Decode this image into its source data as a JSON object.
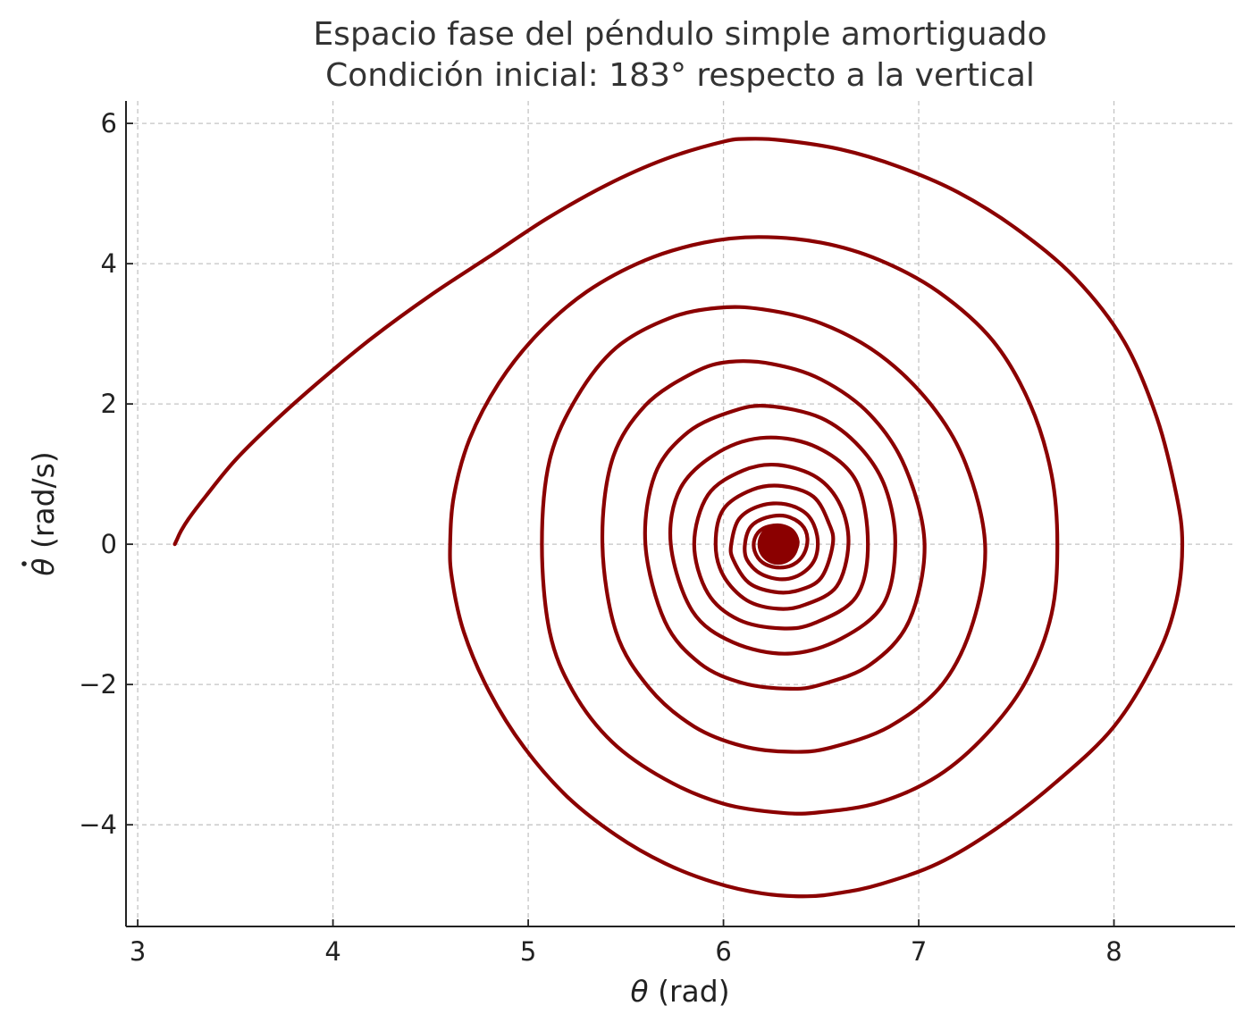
{
  "chart_data": {
    "type": "line",
    "title_lines": [
      "Espacio fase del péndulo simple amortiguado",
      "Condición inicial: 183° respecto a la vertical"
    ],
    "xlabel_symbol": "θ",
    "xlabel_unit": " (rad)",
    "ylabel_symbol": "θ",
    "ylabel_unit": " (rad/s)",
    "xlim": [
      2.94,
      8.62
    ],
    "ylim": [
      -5.45,
      6.32
    ],
    "xticks": [
      {
        "value": 3,
        "label": "3"
      },
      {
        "value": 4,
        "label": "4"
      },
      {
        "value": 5,
        "label": "5"
      },
      {
        "value": 6,
        "label": "6"
      },
      {
        "value": 7,
        "label": "7"
      },
      {
        "value": 8,
        "label": "8"
      }
    ],
    "yticks": [
      {
        "value": 6,
        "label": "6"
      },
      {
        "value": 4,
        "label": "4"
      },
      {
        "value": 2,
        "label": "2"
      },
      {
        "value": 0,
        "label": "0"
      },
      {
        "value": -2,
        "label": "−2"
      },
      {
        "value": -4,
        "label": "−4"
      }
    ],
    "grid": true,
    "line_color": "#8b0000",
    "series": [
      {
        "style": "phase-trajectory",
        "points": [
          [
            3.19,
            0.0
          ],
          [
            3.2,
            0.06
          ],
          [
            3.22,
            0.18
          ],
          [
            3.26,
            0.36
          ],
          [
            3.35,
            0.69
          ],
          [
            3.5,
            1.2
          ],
          [
            3.7,
            1.75
          ],
          [
            3.93,
            2.32
          ],
          [
            4.2,
            2.94
          ],
          [
            4.5,
            3.55
          ],
          [
            4.8,
            4.1
          ],
          [
            5.1,
            4.65
          ],
          [
            5.4,
            5.12
          ],
          [
            5.7,
            5.49
          ],
          [
            6.0,
            5.74
          ],
          [
            6.13,
            5.78
          ],
          [
            6.3,
            5.76
          ],
          [
            6.6,
            5.63
          ],
          [
            6.9,
            5.38
          ],
          [
            7.2,
            5.02
          ],
          [
            7.5,
            4.5
          ],
          [
            7.8,
            3.8
          ],
          [
            8.05,
            2.9
          ],
          [
            8.22,
            1.8
          ],
          [
            8.32,
            0.7
          ],
          [
            8.35,
            0.0
          ],
          [
            8.32,
            -0.8
          ],
          [
            8.22,
            -1.6
          ],
          [
            8.0,
            -2.6
          ],
          [
            7.7,
            -3.4
          ],
          [
            7.4,
            -4.05
          ],
          [
            7.1,
            -4.55
          ],
          [
            6.8,
            -4.85
          ],
          [
            6.6,
            -4.97
          ],
          [
            6.43,
            -5.02
          ],
          [
            6.2,
            -4.98
          ],
          [
            5.95,
            -4.82
          ],
          [
            5.7,
            -4.55
          ],
          [
            5.45,
            -4.15
          ],
          [
            5.2,
            -3.6
          ],
          [
            4.98,
            -2.9
          ],
          [
            4.8,
            -2.1
          ],
          [
            4.67,
            -1.25
          ],
          [
            4.61,
            -0.5
          ],
          [
            4.6,
            0.0
          ],
          [
            4.62,
            0.7
          ],
          [
            4.7,
            1.5
          ],
          [
            4.85,
            2.3
          ],
          [
            5.05,
            3.0
          ],
          [
            5.3,
            3.6
          ],
          [
            5.6,
            4.05
          ],
          [
            5.9,
            4.3
          ],
          [
            6.18,
            4.38
          ],
          [
            6.5,
            4.3
          ],
          [
            6.8,
            4.05
          ],
          [
            7.1,
            3.6
          ],
          [
            7.38,
            2.9
          ],
          [
            7.57,
            2.0
          ],
          [
            7.68,
            1.0
          ],
          [
            7.71,
            0.0
          ],
          [
            7.68,
            -1.0
          ],
          [
            7.55,
            -1.95
          ],
          [
            7.35,
            -2.7
          ],
          [
            7.1,
            -3.3
          ],
          [
            6.8,
            -3.68
          ],
          [
            6.5,
            -3.82
          ],
          [
            6.3,
            -3.83
          ],
          [
            6.0,
            -3.7
          ],
          [
            5.7,
            -3.35
          ],
          [
            5.43,
            -2.82
          ],
          [
            5.23,
            -2.1
          ],
          [
            5.11,
            -1.25
          ],
          [
            5.07,
            0.0
          ],
          [
            5.11,
            1.2
          ],
          [
            5.25,
            2.1
          ],
          [
            5.45,
            2.8
          ],
          [
            5.72,
            3.22
          ],
          [
            5.97,
            3.37
          ],
          [
            6.2,
            3.35
          ],
          [
            6.5,
            3.15
          ],
          [
            6.8,
            2.7
          ],
          [
            7.06,
            2.0
          ],
          [
            7.24,
            1.15
          ],
          [
            7.34,
            0.0
          ],
          [
            7.28,
            -1.1
          ],
          [
            7.12,
            -2.0
          ],
          [
            6.85,
            -2.6
          ],
          [
            6.55,
            -2.9
          ],
          [
            6.35,
            -2.96
          ],
          [
            6.1,
            -2.88
          ],
          [
            5.85,
            -2.6
          ],
          [
            5.62,
            -2.05
          ],
          [
            5.45,
            -1.25
          ],
          [
            5.38,
            0.0
          ],
          [
            5.43,
            1.2
          ],
          [
            5.6,
            1.98
          ],
          [
            5.85,
            2.45
          ],
          [
            6.03,
            2.6
          ],
          [
            6.25,
            2.57
          ],
          [
            6.5,
            2.35
          ],
          [
            6.75,
            1.85
          ],
          [
            6.93,
            1.1
          ],
          [
            7.03,
            0.0
          ],
          [
            6.95,
            -1.1
          ],
          [
            6.75,
            -1.72
          ],
          [
            6.5,
            -2.0
          ],
          [
            6.34,
            -2.06
          ],
          [
            6.1,
            -1.98
          ],
          [
            5.88,
            -1.7
          ],
          [
            5.7,
            -1.1
          ],
          [
            5.6,
            0.0
          ],
          [
            5.65,
            1.0
          ],
          [
            5.82,
            1.6
          ],
          [
            6.05,
            1.9
          ],
          [
            6.23,
            1.97
          ],
          [
            6.5,
            1.8
          ],
          [
            6.7,
            1.38
          ],
          [
            6.83,
            0.8
          ],
          [
            6.88,
            0.0
          ],
          [
            6.82,
            -0.85
          ],
          [
            6.6,
            -1.35
          ],
          [
            6.33,
            -1.56
          ],
          [
            6.05,
            -1.4
          ],
          [
            5.84,
            -0.95
          ],
          [
            5.73,
            0.0
          ],
          [
            5.78,
            0.8
          ],
          [
            5.98,
            1.32
          ],
          [
            6.22,
            1.52
          ],
          [
            6.48,
            1.38
          ],
          [
            6.68,
            0.9
          ],
          [
            6.74,
            0.0
          ],
          [
            6.68,
            -0.75
          ],
          [
            6.47,
            -1.12
          ],
          [
            6.3,
            -1.2
          ],
          [
            6.08,
            -1.08
          ],
          [
            5.92,
            -0.7
          ],
          [
            5.85,
            0.0
          ],
          [
            5.92,
            0.7
          ],
          [
            6.1,
            1.05
          ],
          [
            6.28,
            1.13
          ],
          [
            6.48,
            0.95
          ],
          [
            6.6,
            0.55
          ],
          [
            6.64,
            0.0
          ],
          [
            6.58,
            -0.6
          ],
          [
            6.42,
            -0.86
          ],
          [
            6.28,
            -0.92
          ],
          [
            6.12,
            -0.8
          ],
          [
            6.0,
            -0.45
          ],
          [
            5.96,
            0.0
          ],
          [
            6.0,
            0.5
          ],
          [
            6.15,
            0.78
          ],
          [
            6.3,
            0.83
          ],
          [
            6.46,
            0.68
          ],
          [
            6.54,
            0.3
          ],
          [
            6.56,
            0.0
          ],
          [
            6.5,
            -0.48
          ],
          [
            6.38,
            -0.66
          ],
          [
            6.26,
            -0.68
          ],
          [
            6.13,
            -0.55
          ],
          [
            6.05,
            -0.22
          ],
          [
            6.04,
            0.0
          ],
          [
            6.08,
            0.36
          ],
          [
            6.19,
            0.55
          ],
          [
            6.32,
            0.57
          ],
          [
            6.43,
            0.42
          ],
          [
            6.48,
            0.12
          ],
          [
            6.47,
            -0.2
          ],
          [
            6.4,
            -0.42
          ],
          [
            6.3,
            -0.5
          ],
          [
            6.19,
            -0.42
          ],
          [
            6.12,
            -0.22
          ],
          [
            6.11,
            0.0
          ],
          [
            6.14,
            0.25
          ],
          [
            6.22,
            0.38
          ],
          [
            6.32,
            0.4
          ],
          [
            6.4,
            0.28
          ],
          [
            6.43,
            0.08
          ],
          [
            6.41,
            -0.15
          ],
          [
            6.35,
            -0.3
          ],
          [
            6.27,
            -0.33
          ],
          [
            6.2,
            -0.26
          ],
          [
            6.16,
            -0.1
          ],
          [
            6.16,
            0.08
          ],
          [
            6.2,
            0.22
          ],
          [
            6.28,
            0.27
          ],
          [
            6.35,
            0.2
          ],
          [
            6.38,
            0.04
          ],
          [
            6.36,
            -0.12
          ],
          [
            6.3,
            -0.21
          ],
          [
            6.24,
            -0.19
          ],
          [
            6.2,
            -0.08
          ],
          [
            6.2,
            0.06
          ],
          [
            6.24,
            0.15
          ],
          [
            6.3,
            0.17
          ],
          [
            6.34,
            0.1
          ],
          [
            6.34,
            -0.02
          ],
          [
            6.31,
            -0.11
          ],
          [
            6.26,
            -0.12
          ],
          [
            6.23,
            -0.05
          ],
          [
            6.24,
            0.05
          ],
          [
            6.27,
            0.09
          ],
          [
            6.31,
            0.08
          ],
          [
            6.32,
            0.01
          ],
          [
            6.3,
            -0.06
          ],
          [
            6.27,
            -0.06
          ],
          [
            6.26,
            -0.01
          ],
          [
            6.27,
            0.04
          ],
          [
            6.3,
            0.04
          ],
          [
            6.3,
            0.0
          ],
          [
            6.28,
            -0.02
          ],
          [
            6.28,
            0.0
          ]
        ]
      }
    ]
  }
}
